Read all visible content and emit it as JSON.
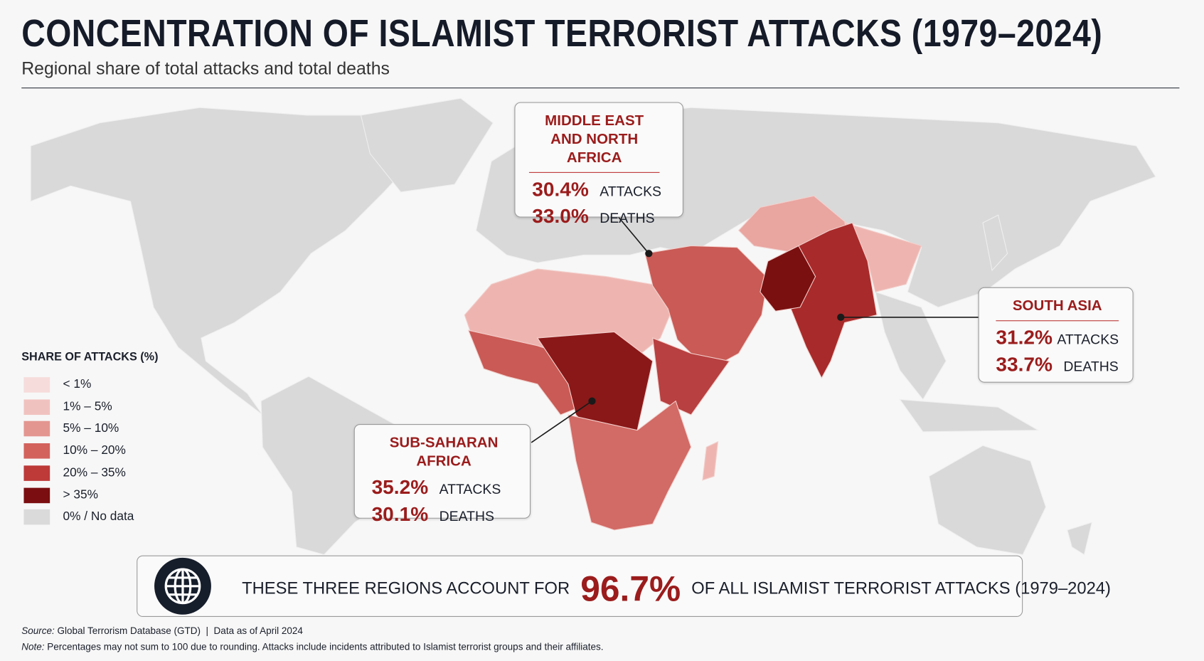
{
  "header": {
    "title": "CONCENTRATION OF ISLAMIST TERRORIST ATTACKS (1979–2024)",
    "subtitle": "Regional share of total attacks and total deaths"
  },
  "legend": {
    "title": "SHARE OF ATTACKS (%)",
    "items": [
      {
        "label": "< 1%",
        "color": "#f6dcdb"
      },
      {
        "label": "1% – 5%",
        "color": "#f0c2bf"
      },
      {
        "label": "5% – 10%",
        "color": "#e39690"
      },
      {
        "label": "10% – 20%",
        "color": "#d3625d"
      },
      {
        "label": "20% – 35%",
        "color": "#bd3a39"
      },
      {
        "label": "> 35%",
        "color": "#7a0e10"
      },
      {
        "label": "0% / No data",
        "color": "#dadada"
      }
    ]
  },
  "callouts": [
    {
      "region": "MIDDLE EAST AND NORTH AFRICA",
      "stats": [
        {
          "value": "30.4%",
          "label": "ATTACKS"
        },
        {
          "value": "33.0%",
          "label": "DEATHS"
        }
      ]
    },
    {
      "region": "SOUTH ASIA",
      "stats": [
        {
          "value": "31.2%",
          "label": "ATTACKS"
        },
        {
          "value": "33.7%",
          "label": "DEATHS"
        }
      ]
    },
    {
      "region": "SUB-SAHARAN AFRICA",
      "stats": [
        {
          "value": "35.2%",
          "label": "ATTACKS"
        },
        {
          "value": "30.1%",
          "label": "DEATHS"
        }
      ]
    }
  ],
  "banner": {
    "lead": "THESE THREE REGIONS ACCOUNT FOR",
    "value": "96.7%",
    "tail": "OF ALL ISLAMIST TERRORIST ATTACKS (1979–2024)"
  },
  "footer": {
    "source_label": "Source:",
    "source": "Global Terrorism Database (GTD)",
    "separator": "|",
    "data_date": "Data as of April 2024",
    "note_label": "Note:",
    "note": "Percentages may not sum to 100 due to rounding. Attacks include incidents attributed to Islamist terrorist groups and their affiliates."
  }
}
